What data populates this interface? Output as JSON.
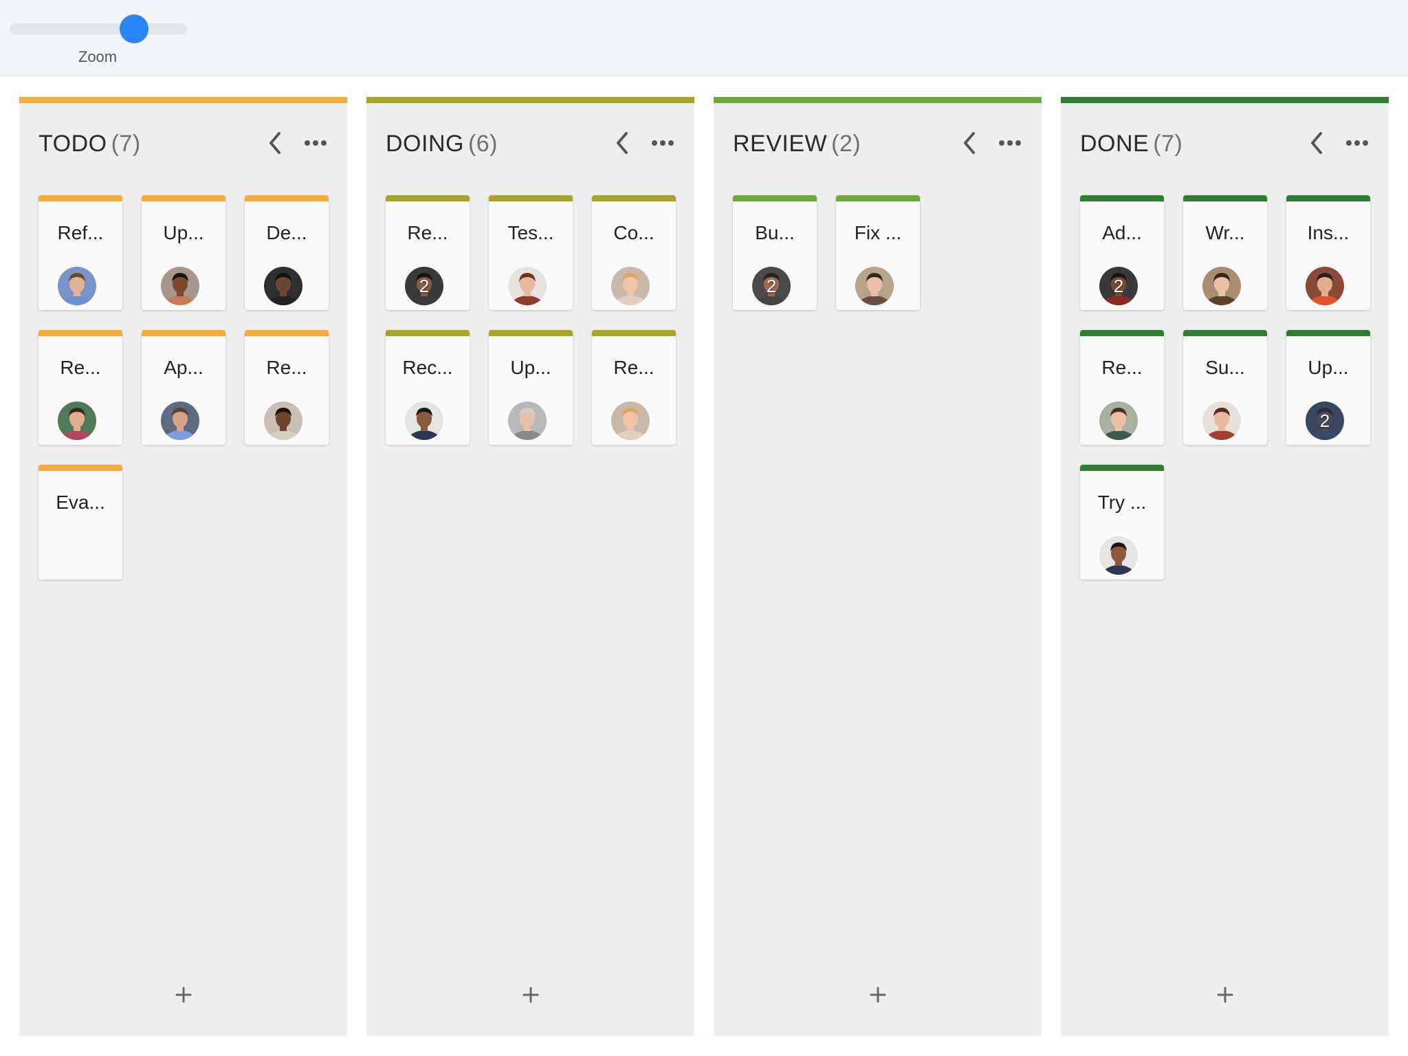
{
  "toolbar": {
    "zoom_label": "Zoom",
    "zoom_level": 0.7
  },
  "columns": [
    {
      "name": "TODO",
      "count": "(7)",
      "color": "#f5ac3b",
      "add_label": "+",
      "cards": [
        {
          "title": "Ref...",
          "avatar": {
            "skin": "#e0b49a",
            "hair": "#6b4a2e",
            "shirt": "#6f8fd6",
            "bg": "#7a93c9",
            "badge": ""
          }
        },
        {
          "title": "Up...",
          "avatar": {
            "skin": "#7a4a30",
            "hair": "#1e1410",
            "shirt": "#c97a54",
            "bg": "#a8988c",
            "badge": ""
          }
        },
        {
          "title": "De...",
          "avatar": {
            "skin": "#6b4632",
            "hair": "#111111",
            "shirt": "#222222",
            "bg": "#2f2f2f",
            "badge": ""
          }
        },
        {
          "title": "Re...",
          "avatar": {
            "skin": "#e2ad8f",
            "hair": "#3a2a1e",
            "shirt": "#b5455a",
            "bg": "#4f7a5a",
            "badge": ""
          }
        },
        {
          "title": "Ap...",
          "avatar": {
            "skin": "#d6a386",
            "hair": "#5a4230",
            "shirt": "#7c9ee0",
            "bg": "#5e6a80",
            "badge": ""
          }
        },
        {
          "title": "Re...",
          "avatar": {
            "skin": "#6e4430",
            "hair": "#1a1210",
            "shirt": "#d8cfc4",
            "bg": "#c9bfb5",
            "badge": ""
          }
        },
        {
          "title": "Eva...",
          "avatar": null
        }
      ]
    },
    {
      "name": "DOING",
      "count": "(6)",
      "color": "#a6a52a",
      "add_label": "+",
      "cards": [
        {
          "title": "Re...",
          "avatar": {
            "skin": "#8a5a44",
            "hair": "#1a1410",
            "shirt": "#3b3b3b",
            "bg": "#3a3a3a",
            "badge": "2"
          }
        },
        {
          "title": "Tes...",
          "avatar": {
            "skin": "#e8b9a0",
            "hair": "#6a3522",
            "shirt": "#8c3c2a",
            "bg": "#e9e2dc",
            "badge": ""
          }
        },
        {
          "title": "Co...",
          "avatar": {
            "skin": "#f0c4a8",
            "hair": "#d8a868",
            "shirt": "#e0d0c0",
            "bg": "#c9b8a8",
            "badge": ""
          }
        },
        {
          "title": "Rec...",
          "avatar": {
            "skin": "#8a5a40",
            "hair": "#1e1610",
            "shirt": "#2c3552",
            "bg": "#e6e4e2",
            "badge": ""
          }
        },
        {
          "title": "Up...",
          "avatar": {
            "skin": "#e6c2ae",
            "hair": "#cfcfcf",
            "shirt": "#8a8a8a",
            "bg": "#b8b8b8",
            "badge": ""
          }
        },
        {
          "title": "Re...",
          "avatar": {
            "skin": "#f0c4a8",
            "hair": "#d8a868",
            "shirt": "#e0d0c0",
            "bg": "#c9b8a8",
            "badge": ""
          }
        }
      ]
    },
    {
      "name": "REVIEW",
      "count": "(2)",
      "color": "#6aaa3a",
      "add_label": "+",
      "cards": [
        {
          "title": "Bu...",
          "avatar": {
            "skin": "#9a6a52",
            "hair": "#2a201a",
            "shirt": "#444444",
            "bg": "#4a4a4a",
            "badge": "2"
          }
        },
        {
          "title": "Fix ...",
          "avatar": {
            "skin": "#ecc0a8",
            "hair": "#3a2418",
            "shirt": "#6a5040",
            "bg": "#b8a48c",
            "badge": ""
          }
        }
      ]
    },
    {
      "name": "DONE",
      "count": "(7)",
      "color": "#2e7d32",
      "add_label": "+",
      "cards": [
        {
          "title": "Ad...",
          "avatar": {
            "skin": "#7a4a36",
            "hair": "#1a1410",
            "shirt": "#8a2a22",
            "bg": "#3a3a3a",
            "badge": "2"
          }
        },
        {
          "title": "Wr...",
          "avatar": {
            "skin": "#ecc0a8",
            "hair": "#3a2418",
            "shirt": "#5a4030",
            "bg": "#a88e70",
            "badge": ""
          }
        },
        {
          "title": "Ins...",
          "avatar": {
            "skin": "#e2ad8f",
            "hair": "#2a1e16",
            "shirt": "#e2542a",
            "bg": "#8a4a3a",
            "badge": ""
          }
        },
        {
          "title": "Re...",
          "avatar": {
            "skin": "#ecc0a8",
            "hair": "#4a3020",
            "shirt": "#3a5a4a",
            "bg": "#a8b0a0",
            "badge": ""
          }
        },
        {
          "title": "Su...",
          "avatar": {
            "skin": "#ecb9a0",
            "hair": "#5a2a1a",
            "shirt": "#a04030",
            "bg": "#e8e0d8",
            "badge": ""
          }
        },
        {
          "title": "Up...",
          "avatar": {
            "skin": "#4a4a5a",
            "hair": "#2a2a3a",
            "shirt": "#3a4a6a",
            "bg": "#3a4660",
            "badge": "2"
          }
        },
        {
          "title": "Try ...",
          "avatar": {
            "skin": "#8a5a40",
            "hair": "#1e1610",
            "shirt": "#2c3552",
            "bg": "#e6e4e2",
            "badge": ""
          }
        }
      ]
    }
  ]
}
